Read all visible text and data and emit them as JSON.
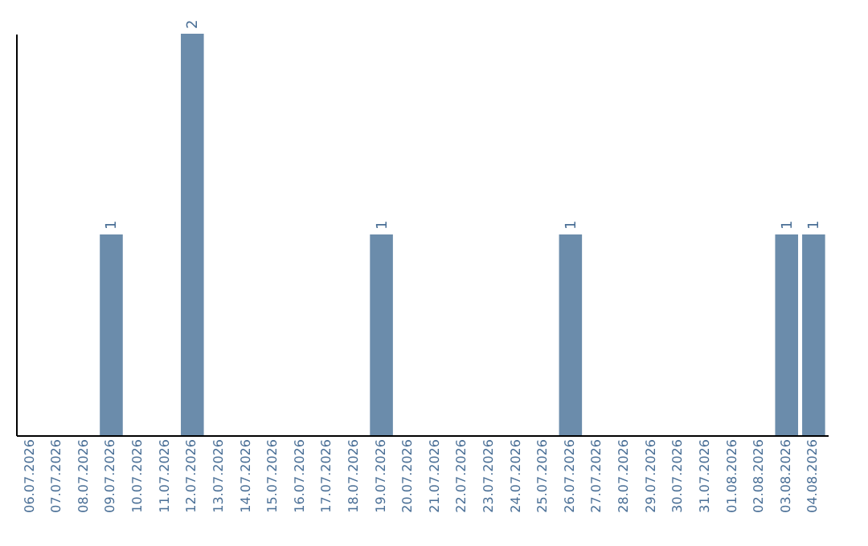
{
  "chart_data": {
    "type": "bar",
    "categories": [
      "06.07.2026",
      "07.07.2026",
      "08.07.2026",
      "09.07.2026",
      "10.07.2026",
      "11.07.2026",
      "12.07.2026",
      "13.07.2026",
      "14.07.2026",
      "15.07.2026",
      "16.07.2026",
      "17.07.2026",
      "18.07.2026",
      "19.07.2026",
      "20.07.2026",
      "21.07.2026",
      "22.07.2026",
      "23.07.2026",
      "24.07.2026",
      "25.07.2026",
      "26.07.2026",
      "27.07.2026",
      "28.07.2026",
      "29.07.2026",
      "30.07.2026",
      "31.07.2026",
      "01.08.2026",
      "02.08.2026",
      "03.08.2026",
      "04.08.2026"
    ],
    "values": [
      0,
      0,
      0,
      1,
      0,
      0,
      2,
      0,
      0,
      0,
      0,
      0,
      0,
      1,
      0,
      0,
      0,
      0,
      0,
      0,
      1,
      0,
      0,
      0,
      0,
      0,
      0,
      0,
      1,
      1
    ],
    "value_labels": [
      null,
      null,
      null,
      "1",
      null,
      null,
      "2",
      null,
      null,
      null,
      null,
      null,
      null,
      "1",
      null,
      null,
      null,
      null,
      null,
      null,
      "1",
      null,
      null,
      null,
      null,
      null,
      null,
      null,
      "1",
      "1"
    ],
    "color": "#6b8cab",
    "tick_labels": "x",
    "grid": false
  }
}
